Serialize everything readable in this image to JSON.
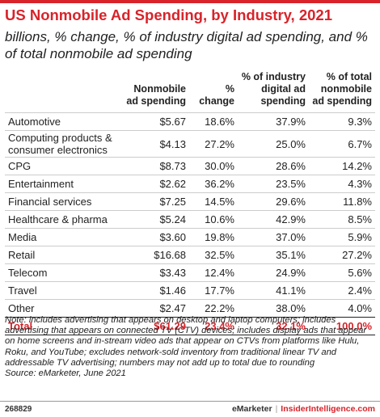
{
  "title": "US Nonmobile Ad Spending, by Industry, 2021",
  "subtitle": "billions, % change, % of industry digital ad spending, and % of total nonmobile ad spending",
  "colors": {
    "accent": "#d8232a"
  },
  "chart_data": {
    "type": "table",
    "title": "US Nonmobile Ad Spending, by Industry, 2021",
    "subtitle": "billions, % change, % of industry digital ad spending, and % of total nonmobile ad spending",
    "columns": [
      "",
      "Nonmobile ad spending",
      "% change",
      "% of industry digital ad spending",
      "% of total nonmobile ad spending"
    ],
    "rows": [
      [
        "Automotive",
        "$5.67",
        "18.6%",
        "37.9%",
        "9.3%"
      ],
      [
        "Computing products & consumer electronics",
        "$4.13",
        "27.2%",
        "25.0%",
        "6.7%"
      ],
      [
        "CPG",
        "$8.73",
        "30.0%",
        "28.6%",
        "14.2%"
      ],
      [
        "Entertainment",
        "$2.62",
        "36.2%",
        "23.5%",
        "4.3%"
      ],
      [
        "Financial services",
        "$7.25",
        "14.5%",
        "29.6%",
        "11.8%"
      ],
      [
        "Healthcare & pharma",
        "$5.24",
        "10.6%",
        "42.9%",
        "8.5%"
      ],
      [
        "Media",
        "$3.60",
        "19.8%",
        "37.0%",
        "5.9%"
      ],
      [
        "Retail",
        "$16.68",
        "32.5%",
        "35.1%",
        "27.2%"
      ],
      [
        "Telecom",
        "$3.43",
        "12.4%",
        "24.9%",
        "5.6%"
      ],
      [
        "Travel",
        "$1.46",
        "17.7%",
        "41.1%",
        "2.4%"
      ],
      [
        "Other",
        "$2.47",
        "22.2%",
        "38.0%",
        "4.0%"
      ]
    ],
    "total": [
      "Total",
      "$61.29",
      "23.4%",
      "32.1%",
      "100.0%"
    ]
  },
  "note": "Note: includes advertising that appears on desktop and laptop computers; includes advertising that appears on connected TV (CTV) devices; includes display ads that appear on home screens and in-stream video ads that appear on CTVs from platforms like Hulu, Roku, and YouTube; excludes network-sold inventory from traditional linear TV and addressable TV advertising; numbers may not add up to total due to rounding",
  "source": "Source: eMarketer, June 2021",
  "footer": {
    "chart_id": "268829",
    "brand_1": "eMarketer",
    "separator": "|",
    "brand_2": "InsiderIntelligence.com"
  }
}
